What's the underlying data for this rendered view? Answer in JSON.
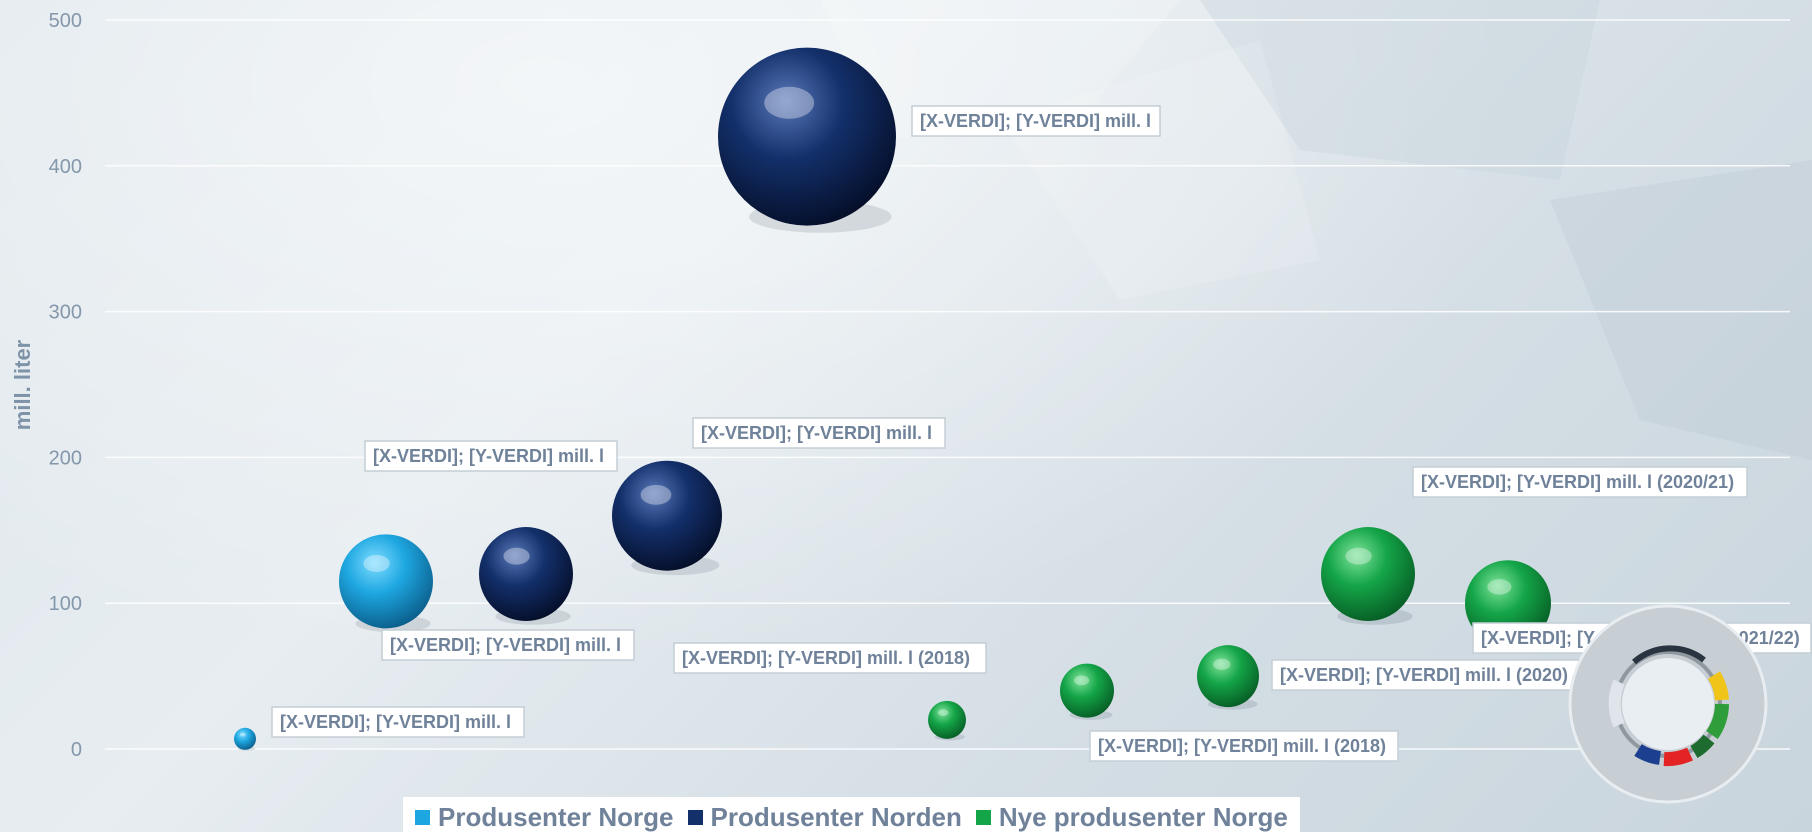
{
  "chart_data": {
    "type": "scatter",
    "title": "",
    "xlabel": "",
    "ylabel": "mill. liter",
    "ylim": [
      0,
      500
    ],
    "yticks": [
      0,
      100,
      200,
      300,
      400,
      500
    ],
    "grid": true,
    "legend_position": "bottom",
    "series": [
      {
        "name": "Produsenter Norge",
        "color": "#1da6e0",
        "points": [
          {
            "x": 1,
            "y": 7,
            "size": 8,
            "label": "[X-VERDI]; [Y-VERDI] mill. l"
          },
          {
            "x": 2,
            "y": 115,
            "size": 115,
            "label": "[X-VERDI]; [Y-VERDI] mill. l"
          }
        ]
      },
      {
        "name": "Produsenter Norden",
        "color": "#13306b",
        "points": [
          {
            "x": 3,
            "y": 120,
            "size": 120,
            "label": "[X-VERDI]; [Y-VERDI] mill. l"
          },
          {
            "x": 4,
            "y": 160,
            "size": 160,
            "label": "[X-VERDI]; [Y-VERDI] mill. l"
          },
          {
            "x": 5,
            "y": 420,
            "size": 420,
            "label": "[X-VERDI]; [Y-VERDI] mill. l"
          }
        ]
      },
      {
        "name": "Nye produsenter Norge",
        "color": "#14a548",
        "points": [
          {
            "x": 6,
            "y": 20,
            "size": 20,
            "label": "[X-VERDI]; [Y-VERDI] mill. l (2018)"
          },
          {
            "x": 7,
            "y": 40,
            "size": 40,
            "label": "[X-VERDI]; [Y-VERDI] mill. l (2018)"
          },
          {
            "x": 8,
            "y": 50,
            "size": 50,
            "label": "[X-VERDI]; [Y-VERDI] mill. l (2020)"
          },
          {
            "x": 9,
            "y": 120,
            "size": 120,
            "label": "[X-VERDI]; [Y-VERDI] mill. l (2020/21)"
          },
          {
            "x": 10,
            "y": 100,
            "size": 100,
            "label": "[X-VERDI]; [Y-VERDI] mill. L (2021/22)"
          }
        ]
      }
    ]
  },
  "legend": {
    "items": [
      {
        "label": "Produsenter Norge",
        "color": "#1da6e0"
      },
      {
        "label": "Produsenter Norden",
        "color": "#13306b"
      },
      {
        "label": "Nye produsenter Norge",
        "color": "#14a548"
      }
    ]
  },
  "logo": {
    "icon": "ring-logo-icon"
  }
}
